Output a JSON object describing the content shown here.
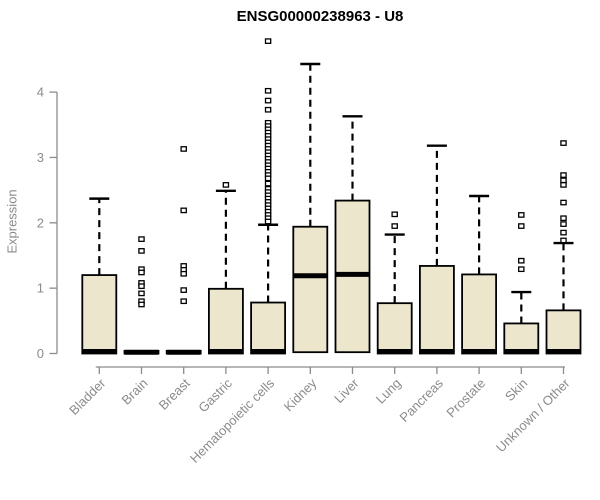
{
  "chart_data": {
    "type": "boxplot",
    "title": "ENSG00000238963 - U8",
    "ylabel": "Expression",
    "xlabel": "",
    "ylim": [
      0,
      4.85
    ],
    "yticks": [
      "0",
      "1",
      "2",
      "3",
      "4"
    ],
    "grid": false,
    "legend": "none",
    "categories": [
      "Bladder",
      "Brain",
      "Breast",
      "Gastric",
      "Hematopoietic cells",
      "Kidney",
      "Liver",
      "Lung",
      "Pancreas",
      "Prostate",
      "Skin",
      "Unknown / Other"
    ],
    "series": [
      {
        "category": "Bladder",
        "whisker_low": 0,
        "q1": 0,
        "median": 0.03,
        "q3": 1.2,
        "whisker_high": 2.37,
        "outliers": []
      },
      {
        "category": "Brain",
        "whisker_low": 0,
        "q1": 0,
        "median": 0.02,
        "q3": 0.04,
        "whisker_high": 0.04,
        "outliers": [
          1.75,
          1.57,
          1.29,
          1.24,
          1.08,
          1.03,
          0.92,
          0.8,
          0.75
        ]
      },
      {
        "category": "Breast",
        "whisker_low": 0,
        "q1": 0,
        "median": 0.02,
        "q3": 0.04,
        "whisker_high": 0.04,
        "outliers": [
          3.13,
          2.19,
          1.34,
          1.28,
          1.22,
          0.97,
          0.8
        ]
      },
      {
        "category": "Gastric",
        "whisker_low": 0,
        "q1": 0,
        "median": 0.03,
        "q3": 0.99,
        "whisker_high": 2.49,
        "outliers": [
          2.58
        ]
      },
      {
        "category": "Hematopoietic cells",
        "whisker_low": 0,
        "q1": 0,
        "median": 0.03,
        "q3": 0.78,
        "whisker_high": 1.97,
        "outliers": [
          4.78,
          4.02,
          3.87,
          3.73,
          3.53,
          3.48,
          3.43,
          3.38,
          3.33,
          3.28,
          3.23,
          3.18,
          3.13,
          3.08,
          3.03,
          2.98,
          2.93,
          2.88,
          2.83,
          2.78,
          2.73,
          2.68,
          2.6,
          2.52,
          2.47,
          2.42,
          2.37,
          2.32,
          2.27,
          2.22,
          2.17,
          2.12,
          2.07,
          2.02
        ]
      },
      {
        "category": "Kidney",
        "whisker_low": 0,
        "q1": 0.02,
        "median": 1.19,
        "q3": 1.94,
        "whisker_high": 4.43,
        "outliers": []
      },
      {
        "category": "Liver",
        "whisker_low": 0,
        "q1": 0.02,
        "median": 1.21,
        "q3": 2.34,
        "whisker_high": 3.63,
        "outliers": []
      },
      {
        "category": "Lung",
        "whisker_low": 0,
        "q1": 0,
        "median": 0.03,
        "q3": 0.77,
        "whisker_high": 1.82,
        "outliers": [
          2.13,
          1.95
        ]
      },
      {
        "category": "Pancreas",
        "whisker_low": 0,
        "q1": 0,
        "median": 0.03,
        "q3": 1.34,
        "whisker_high": 3.18,
        "outliers": []
      },
      {
        "category": "Prostate",
        "whisker_low": 0,
        "q1": 0,
        "median": 0.03,
        "q3": 1.21,
        "whisker_high": 2.41,
        "outliers": []
      },
      {
        "category": "Skin",
        "whisker_low": 0,
        "q1": 0,
        "median": 0.03,
        "q3": 0.46,
        "whisker_high": 0.94,
        "outliers": [
          2.12,
          1.95,
          1.42,
          1.29
        ]
      },
      {
        "category": "Unknown / Other",
        "whisker_low": 0,
        "q1": 0,
        "median": 0.03,
        "q3": 0.66,
        "whisker_high": 1.69,
        "outliers": [
          3.22,
          2.73,
          2.65,
          2.58,
          2.31,
          2.07,
          1.98,
          1.85,
          1.73
        ]
      }
    ],
    "colors": {
      "box_fill": "#EBE6CC",
      "box_stroke": "#000000",
      "median": "#000000",
      "whisker": "#000000",
      "axis": "#8b8b8b",
      "tick_label": "#8b8b8b",
      "title": "#000000",
      "background": "#ffffff"
    }
  }
}
